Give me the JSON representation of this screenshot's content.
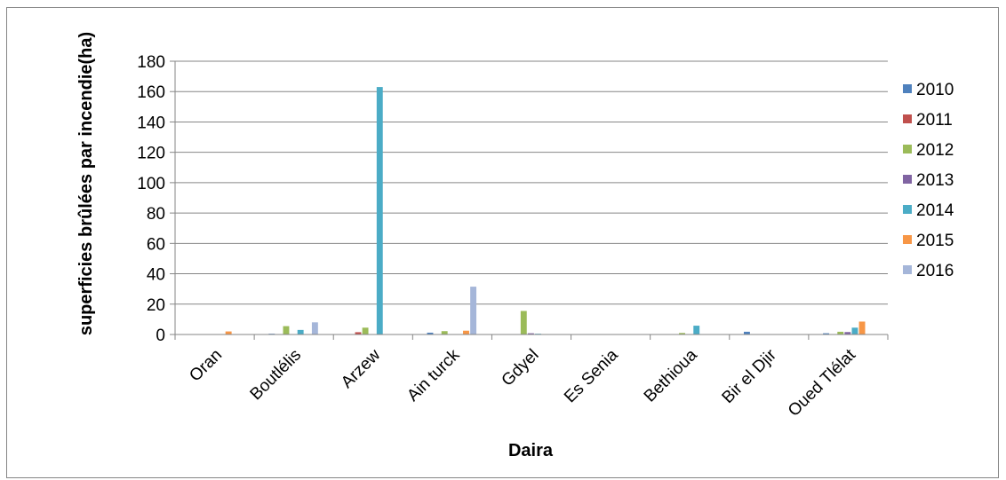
{
  "chart_data": {
    "type": "bar",
    "xlabel": "Daira",
    "ylabel": "superficies  brûlées par incendie(ha)",
    "ylim": [
      0,
      180
    ],
    "yticks": [
      0,
      20,
      40,
      60,
      80,
      100,
      120,
      140,
      160,
      180
    ],
    "grid": "horizontal",
    "legend_position": "right",
    "categories": [
      "Oran",
      "Boutlélis",
      "Arzew",
      "Ain turck",
      "Gdyel",
      "Es Senia",
      "Bethioua",
      "Bir el Djir",
      "Oued Tlélat"
    ],
    "series": [
      {
        "name": "2010",
        "color": "#4F81BD",
        "values": [
          0,
          0.5,
          0,
          1.2,
          0,
          0.3,
          0,
          1.8,
          0.8
        ]
      },
      {
        "name": "2011",
        "color": "#C0504D",
        "values": [
          0,
          0,
          1.5,
          0,
          0,
          0,
          0,
          0,
          0
        ]
      },
      {
        "name": "2012",
        "color": "#9BBB59",
        "values": [
          0,
          5.5,
          4.5,
          2.2,
          15.5,
          0,
          1.0,
          0,
          1.8
        ]
      },
      {
        "name": "2013",
        "color": "#8064A2",
        "values": [
          0,
          0,
          0,
          0,
          0.8,
          0,
          0,
          0.3,
          1.6
        ]
      },
      {
        "name": "2014",
        "color": "#4BACC6",
        "values": [
          0,
          3.0,
          163,
          0,
          0.5,
          0,
          5.8,
          0,
          4.5
        ]
      },
      {
        "name": "2015",
        "color": "#F79646",
        "values": [
          2.0,
          0,
          0,
          2.5,
          0.3,
          0,
          0,
          0,
          8.5
        ]
      },
      {
        "name": "2016",
        "color": "#A5B6D9",
        "values": [
          0,
          8.0,
          0,
          31.5,
          0,
          0,
          0,
          0,
          0
        ]
      }
    ]
  }
}
